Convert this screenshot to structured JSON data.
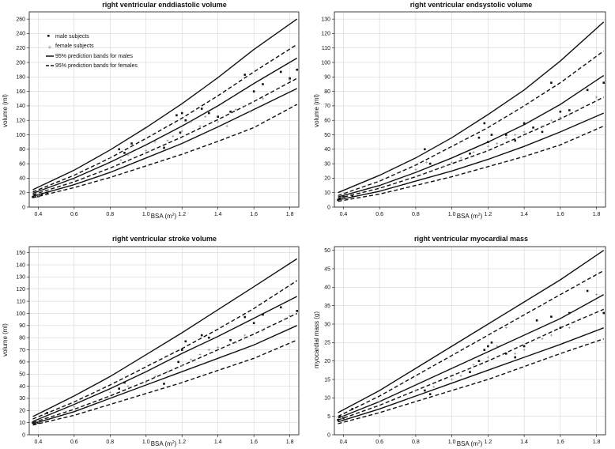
{
  "legend": {
    "male": "male subjects",
    "female": "female subjects",
    "male_bands": "95% prediction bands for males",
    "female_bands": "95% prediction bands for females"
  },
  "chart_data": [
    {
      "type": "scatter",
      "title": "right ventricular enddiastolic volume",
      "xlabel": "BSA (m²)",
      "ylabel": "volume (ml)",
      "xlim": [
        0.35,
        1.85
      ],
      "ylim": [
        0,
        270
      ],
      "xticks": [
        0.4,
        0.6,
        0.8,
        1.0,
        1.2,
        1.4,
        1.6,
        1.8
      ],
      "yticks": [
        0,
        20,
        40,
        60,
        80,
        100,
        120,
        140,
        160,
        180,
        200,
        220,
        240,
        260
      ],
      "legend_position": "top-left",
      "grid": true,
      "male_bands": {
        "x": [
          0.37,
          0.6,
          0.8,
          1.0,
          1.2,
          1.4,
          1.6,
          1.84
        ],
        "lower": [
          15,
          31,
          48,
          68,
          88,
          111,
          135,
          164
        ],
        "mid": [
          19,
          40,
          62,
          86,
          112,
          140,
          171,
          206
        ],
        "upper": [
          24,
          51,
          79,
          110,
          143,
          179,
          218,
          260
        ]
      },
      "female_bands": {
        "x": [
          0.37,
          0.6,
          0.8,
          1.0,
          1.2,
          1.4,
          1.6,
          1.84
        ],
        "lower": [
          13,
          27,
          41,
          57,
          73,
          91,
          110,
          142
        ],
        "mid": [
          17,
          35,
          54,
          75,
          97,
          121,
          146,
          178
        ],
        "upper": [
          21,
          44,
          68,
          95,
          123,
          154,
          187,
          225
        ]
      },
      "series": [
        {
          "name": "male subjects",
          "x": [
            0.37,
            0.38,
            0.4,
            0.42,
            0.45,
            0.85,
            0.88,
            0.92,
            1.1,
            1.17,
            1.19,
            1.2,
            1.22,
            1.31,
            1.35,
            1.4,
            1.47,
            1.55,
            1.6,
            1.65,
            1.75,
            1.8,
            1.84
          ],
          "y": [
            14,
            16,
            15,
            18,
            20,
            80,
            75,
            88,
            82,
            127,
            103,
            130,
            120,
            136,
            130,
            125,
            132,
            183,
            160,
            170,
            187,
            178,
            190
          ]
        },
        {
          "name": "female subjects",
          "x": [
            0.4,
            0.6,
            0.8,
            0.86,
            0.9,
            1.0,
            1.05,
            1.12,
            1.15,
            1.2,
            1.25,
            1.3,
            1.33,
            1.4,
            1.45,
            1.5,
            1.55,
            1.58,
            1.65,
            1.8
          ],
          "y": [
            16,
            38,
            68,
            65,
            72,
            78,
            90,
            92,
            98,
            105,
            118,
            112,
            125,
            118,
            112,
            135,
            140,
            132,
            150,
            176
          ]
        }
      ]
    },
    {
      "type": "scatter",
      "title": "right ventricular endsystolic volume",
      "xlabel": "BSA (m²)",
      "ylabel": "volume (ml)",
      "xlim": [
        0.35,
        1.85
      ],
      "ylim": [
        0,
        135
      ],
      "xticks": [
        0.4,
        0.6,
        0.8,
        1.0,
        1.2,
        1.4,
        1.6,
        1.8
      ],
      "yticks": [
        0,
        10,
        20,
        30,
        40,
        50,
        60,
        70,
        80,
        90,
        100,
        110,
        120,
        130
      ],
      "grid": true,
      "male_bands": {
        "x": [
          0.37,
          0.6,
          0.8,
          1.0,
          1.2,
          1.4,
          1.6,
          1.84
        ],
        "lower": [
          5,
          11,
          18,
          25,
          33,
          42,
          52,
          65
        ],
        "mid": [
          7,
          15,
          24,
          34,
          45,
          57,
          71,
          91
        ],
        "upper": [
          10,
          22,
          34,
          48,
          64,
          81,
          101,
          128
        ]
      },
      "female_bands": {
        "x": [
          0.37,
          0.6,
          0.8,
          1.0,
          1.2,
          1.4,
          1.6,
          1.84
        ],
        "lower": [
          4,
          9,
          15,
          21,
          28,
          35,
          43,
          56
        ],
        "mid": [
          6,
          13,
          21,
          30,
          39,
          50,
          61,
          76
        ],
        "upper": [
          8,
          18,
          29,
          42,
          55,
          70,
          86,
          108
        ]
      },
      "series": [
        {
          "name": "male subjects",
          "x": [
            0.37,
            0.38,
            0.4,
            0.45,
            0.85,
            0.88,
            1.1,
            1.15,
            1.18,
            1.2,
            1.22,
            1.3,
            1.35,
            1.4,
            1.45,
            1.5,
            1.55,
            1.6,
            1.65,
            1.75,
            1.84
          ],
          "y": [
            5,
            6,
            7,
            8,
            40,
            30,
            37,
            48,
            58,
            45,
            50,
            50,
            46,
            58,
            55,
            52,
            86,
            66,
            67,
            81,
            86
          ]
        },
        {
          "name": "female subjects",
          "x": [
            0.4,
            0.6,
            0.8,
            0.86,
            0.95,
            1.0,
            1.05,
            1.12,
            1.2,
            1.25,
            1.3,
            1.35,
            1.4,
            1.5,
            1.55,
            1.6,
            1.65,
            1.8
          ],
          "y": [
            6,
            14,
            26,
            31,
            28,
            31,
            34,
            38,
            42,
            44,
            48,
            50,
            52,
            56,
            60,
            62,
            64,
            76
          ]
        }
      ]
    },
    {
      "type": "scatter",
      "title": "right ventricular stroke volume",
      "xlabel": "BSA (m²)",
      "ylabel": "volume (ml)",
      "xlim": [
        0.35,
        1.85
      ],
      "ylim": [
        0,
        155
      ],
      "xticks": [
        0.4,
        0.6,
        0.8,
        1.0,
        1.2,
        1.4,
        1.6,
        1.8
      ],
      "yticks": [
        0,
        10,
        20,
        30,
        40,
        50,
        60,
        70,
        80,
        90,
        100,
        110,
        120,
        130,
        140,
        150
      ],
      "grid": true,
      "male_bands": {
        "x": [
          0.37,
          0.6,
          0.8,
          1.0,
          1.2,
          1.4,
          1.6,
          1.84
        ],
        "lower": [
          9,
          19,
          30,
          41,
          52,
          63,
          74,
          90
        ],
        "mid": [
          11,
          25,
          38,
          52,
          67,
          81,
          96,
          114
        ],
        "upper": [
          15,
          32,
          48,
          66,
          84,
          103,
          122,
          145
        ]
      },
      "female_bands": {
        "x": [
          0.37,
          0.6,
          0.8,
          1.0,
          1.2,
          1.4,
          1.6,
          1.84
        ],
        "lower": [
          8,
          16,
          25,
          34,
          43,
          53,
          63,
          78
        ],
        "mid": [
          10,
          21,
          32,
          44,
          57,
          70,
          83,
          100
        ],
        "upper": [
          13,
          27,
          41,
          56,
          71,
          87,
          104,
          127
        ]
      },
      "series": [
        {
          "name": "male subjects",
          "x": [
            0.37,
            0.38,
            0.4,
            0.45,
            0.85,
            0.88,
            1.1,
            1.18,
            1.2,
            1.22,
            1.31,
            1.35,
            1.47,
            1.55,
            1.6,
            1.65,
            1.75,
            1.84
          ],
          "y": [
            10,
            9,
            10,
            18,
            38,
            43,
            42,
            60,
            70,
            77,
            82,
            80,
            78,
            97,
            92,
            99,
            105,
            102
          ]
        },
        {
          "name": "female subjects",
          "x": [
            0.4,
            0.6,
            0.8,
            0.9,
            1.0,
            1.05,
            1.12,
            1.2,
            1.25,
            1.3,
            1.35,
            1.4,
            1.5,
            1.55,
            1.65,
            1.8
          ],
          "y": [
            11,
            23,
            35,
            40,
            43,
            48,
            52,
            57,
            62,
            66,
            70,
            72,
            76,
            82,
            86,
            98
          ]
        }
      ]
    },
    {
      "type": "scatter",
      "title": "right ventricular myocardial mass",
      "xlabel": "BSA (m²)",
      "ylabel": "myocardial mass (g)",
      "xlim": [
        0.35,
        1.85
      ],
      "ylim": [
        0,
        51
      ],
      "xticks": [
        0.4,
        0.6,
        0.8,
        1.0,
        1.2,
        1.4,
        1.6,
        1.8
      ],
      "yticks": [
        0,
        5,
        10,
        15,
        20,
        25,
        30,
        35,
        40,
        45,
        50
      ],
      "grid": true,
      "male_bands": {
        "x": [
          0.37,
          0.6,
          0.8,
          1.0,
          1.2,
          1.4,
          1.6,
          1.84
        ],
        "lower": [
          3.5,
          7,
          10.5,
          14,
          17.5,
          21,
          24.5,
          29
        ],
        "mid": [
          4.5,
          9,
          13.5,
          18,
          22.5,
          27,
          31.5,
          38
        ],
        "upper": [
          6,
          12,
          18,
          24,
          30,
          36,
          42,
          50
        ]
      },
      "female_bands": {
        "x": [
          0.37,
          0.6,
          0.8,
          1.0,
          1.2,
          1.4,
          1.6,
          1.84
        ],
        "lower": [
          3,
          6,
          9,
          12,
          15,
          18.5,
          22,
          26
        ],
        "mid": [
          4,
          8,
          12,
          16,
          20,
          24.5,
          29,
          34
        ],
        "upper": [
          5,
          10.5,
          16,
          21.5,
          27,
          32.5,
          38,
          44.5
        ]
      },
      "series": [
        {
          "name": "male subjects",
          "x": [
            0.37,
            0.38,
            0.4,
            0.45,
            0.85,
            0.88,
            1.1,
            1.15,
            1.18,
            1.2,
            1.22,
            1.3,
            1.35,
            1.4,
            1.47,
            1.55,
            1.6,
            1.65,
            1.75,
            1.84
          ],
          "y": [
            4,
            5,
            4.5,
            7,
            12,
            11,
            17,
            20,
            23,
            24,
            25,
            22,
            21,
            24,
            31,
            32,
            29,
            33,
            39,
            33
          ]
        },
        {
          "name": "female subjects",
          "x": [
            0.4,
            0.6,
            0.8,
            0.9,
            1.0,
            1.05,
            1.12,
            1.2,
            1.25,
            1.3,
            1.35,
            1.4,
            1.5,
            1.55,
            1.65,
            1.8
          ],
          "y": [
            5,
            9,
            12,
            13,
            15,
            16,
            19,
            21,
            24,
            29,
            22,
            23,
            26,
            27,
            29,
            38
          ]
        }
      ]
    }
  ]
}
